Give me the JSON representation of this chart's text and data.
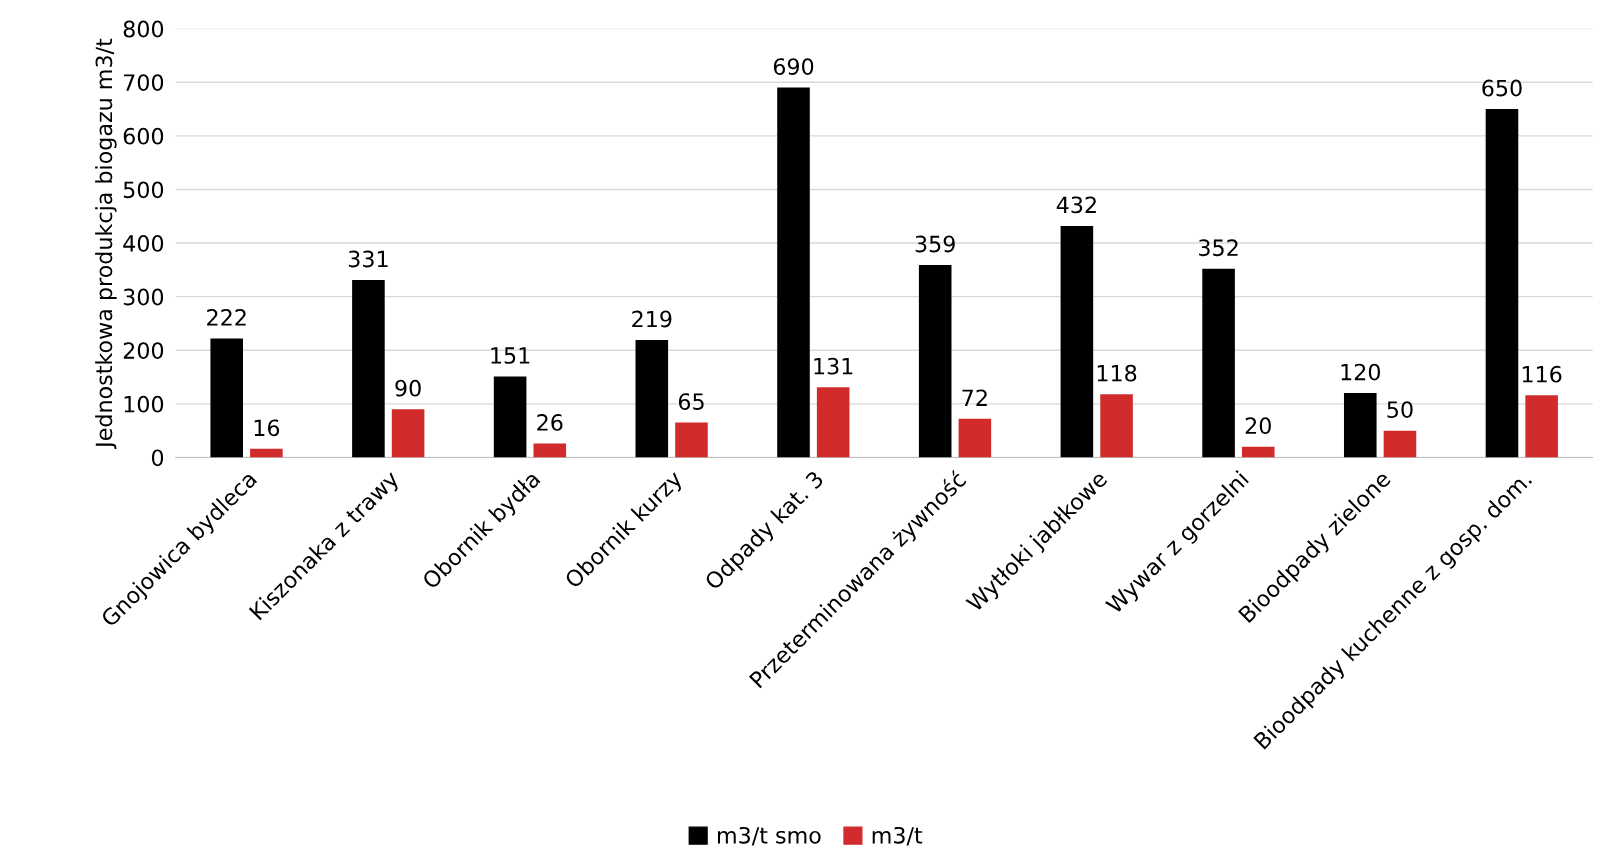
{
  "chart_data": {
    "type": "bar",
    "ylabel": "Jednostkowa produkcja biogazu m3/t",
    "categories": [
      "Gnojowica bydleca",
      "Kiszonaka z trawy",
      "Obornik bydła",
      "Obornik kurzy",
      "Odpady kat. 3",
      "Przeterminowana żywność",
      "Wytłoki jabłkowe",
      "Wywar z gorzelni",
      "Bioodpady zielone",
      "Bioodpady kuchenne z gosp. dom."
    ],
    "series": [
      {
        "name": "m3/t smo",
        "color": "#000000",
        "values": [
          222,
          331,
          151,
          219,
          690,
          359,
          432,
          352,
          120,
          650
        ]
      },
      {
        "name": "m3/t",
        "color": "#d22b2b",
        "values": [
          16,
          90,
          26,
          65,
          131,
          72,
          118,
          20,
          50,
          116
        ]
      }
    ],
    "ylim": [
      0,
      800
    ],
    "yticks": [
      0,
      100,
      200,
      300,
      400,
      500,
      600,
      700,
      800
    ],
    "grid": "y",
    "legend": "bottom",
    "data_labels": true
  }
}
